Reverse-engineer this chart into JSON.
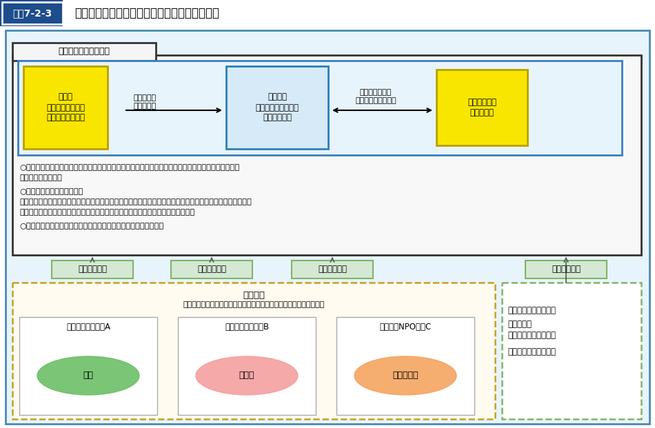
{
  "title_box_label": "図表7-2-3",
  "title_text": "地域医療連携推進法人制度の概要（現行制度）",
  "chiiki_label": "地域医療連携推進法人",
  "riji_box_text": "理事会\n（理事３名以上及\nび監事１名以上）",
  "riji_bg": "#f9e600",
  "riji_border": "#b8a000",
  "arrow_text1": "連携法人の\n業務を執行",
  "arrow_text2": "意見具申（社員\n総会は意見を尊重）",
  "shaiin_box_text": "社員総会\n（連携法人に関する\n事項の決議）",
  "shaiin_bg": "#d6eaf8",
  "shaiin_border": "#2980b9",
  "chiiki_hyogikai_text": "地域医療連携\n推進評議会",
  "chiiki_hyogikai_bg": "#f9e600",
  "chiiki_hyogikai_border": "#b8a000",
  "bullet1": "○医療連携推進区域（原則地域医療構想区域内）を定め、区域内の病院等の連携推進の方針（医療連携",
  "bullet1b": "　推進方針）を決定",
  "bullet2": "○医療連携推進業務等の実施",
  "bullet2b": "　診療科（病床）再編（病床特例の適用）、医師等の共同研修、医薬品等の共同購入、参加法人への資金貸付",
  "bullet2c": "　（基金造成を含む）、連携法人が議決権の全てを保有する関連事業者への出資等",
  "bullet3": "○参加法人の統括（参加法人の予算・事業計画等へ意見を述べる）",
  "sankaku_label": "参画（社員）",
  "sankaku_bg": "#d5e8d4",
  "sankaku_border": "#82b366",
  "sankaka_hojin_title": "参加法人",
  "sankaka_hojin_sub": "（非営利で病院等の運営又は地域包括ケアに関する事業を行う法人）",
  "hojin_examples": [
    {
      "label": "（例）　医療法人A",
      "ellipse_text": "病院",
      "ellipse_color": "#6dbf67"
    },
    {
      "label": "（例）　公益法人B",
      "ellipse_text": "診療所",
      "ellipse_color": "#f4a0a0"
    },
    {
      "label": "（例）　NPO法人C",
      "ellipse_text": "介護事業所",
      "ellipse_color": "#f4a460"
    }
  ],
  "side_box_line1": "・区域内の個人開業医",
  "side_box_line2": "・区域内の",
  "side_box_line3": "　医療従事者養成機関",
  "side_box_line4": "・関係自治体　　　等",
  "header_dark": "#1e4d8c",
  "header_label_bg": "#1e4d8c",
  "outer_border_color": "#4a8ab5",
  "outer_fill": "#e8f4fb",
  "main_box_fill": "#f8f8f8",
  "main_box_border": "#333333",
  "inner_box_fill": "#e8f4fb",
  "inner_box_border": "#3a7fc1",
  "side_box_border": "#82b366",
  "dashed_box_fill": "#fffbf0",
  "dashed_box_border": "#c8a020"
}
